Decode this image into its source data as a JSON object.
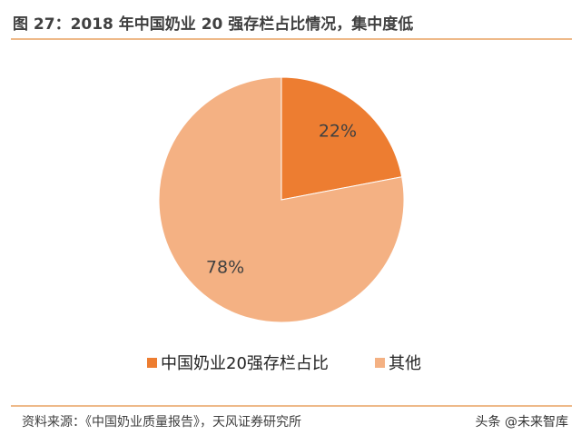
{
  "chart_data": {
    "type": "pie",
    "title": "图 27：2018 年中国奶业 20 强存栏占比情况，集中度低",
    "categories": [
      "中国奶业20强存栏占比",
      "其他"
    ],
    "values": [
      22,
      78
    ],
    "value_labels": [
      "22%",
      "78%"
    ],
    "colors": [
      "#ed7d31",
      "#f4b183"
    ],
    "source": "资料来源：《中国奶业质量报告》，天风证券研究所",
    "watermark": "头条 @未来智库"
  }
}
